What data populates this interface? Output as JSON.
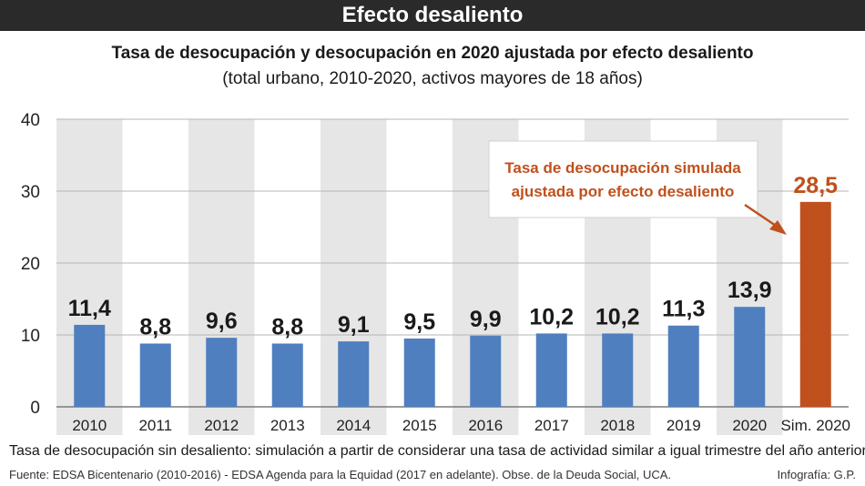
{
  "header": {
    "title": "Efecto desaliento"
  },
  "chart_data": {
    "type": "bar",
    "title": "Tasa de desocupación y desocupación en 2020 ajustada por efecto desaliento",
    "subtitle": "(total urbano, 2010-2020, activos mayores de 18 años)",
    "categories": [
      "2010",
      "2011",
      "2012",
      "2013",
      "2014",
      "2015",
      "2016",
      "2017",
      "2018",
      "2019",
      "2020",
      "Sim. 2020"
    ],
    "values": [
      11.4,
      8.8,
      9.6,
      8.8,
      9.1,
      9.5,
      9.9,
      10.2,
      10.2,
      11.3,
      13.9,
      28.5
    ],
    "value_labels": [
      "11,4",
      "8,8",
      "9,6",
      "8,8",
      "9,1",
      "9,5",
      "9,9",
      "10,2",
      "10,2",
      "11,3",
      "13,9",
      "28,5"
    ],
    "yticks": [
      0,
      10,
      20,
      30,
      40
    ],
    "ylim": [
      0,
      40
    ],
    "grid": true,
    "highlight_index": 11,
    "annotation": {
      "line1": "Tasa de desocupación simulada",
      "line2": "ajustada por efecto desaliento"
    },
    "colors": {
      "bar": "#4f7fbf",
      "highlight": "#c0501d",
      "stripe": "#e6e6e6",
      "grid": "#b5b5b5"
    }
  },
  "footer": {
    "note": "Tasa de desocupación sin desaliento: simulación a partir de considerar una tasa de actividad similar a igual trimestre del año anterior.",
    "source": "Fuente: EDSA Bicentenario (2010-2016) - EDSA Agenda para la Equidad (2017 en adelante). Obse. de la Deuda Social, UCA.",
    "credit": "Infografía: G.P."
  }
}
